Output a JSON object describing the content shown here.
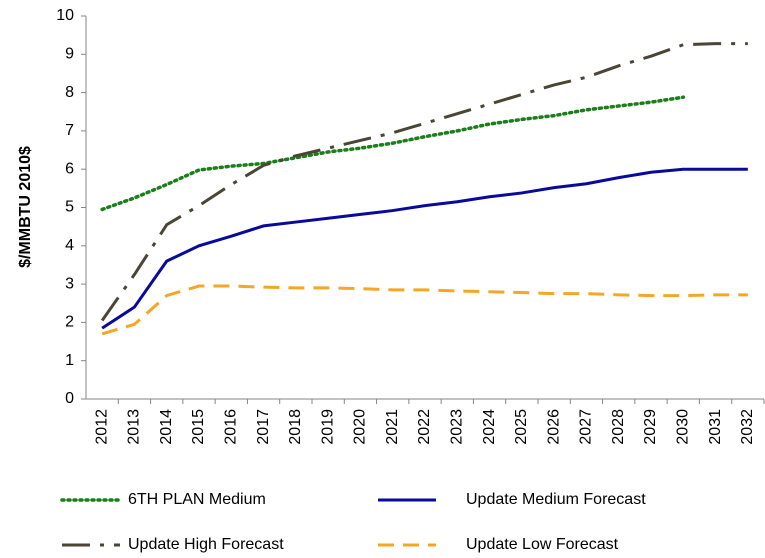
{
  "chart_data": {
    "type": "line",
    "y_label": "$/MMBTU 2010$",
    "categories": [
      "2012",
      "2013",
      "2014",
      "2015",
      "2016",
      "2017",
      "2018",
      "2019",
      "2020",
      "2021",
      "2022",
      "2023",
      "2024",
      "2025",
      "2026",
      "2027",
      "2028",
      "2029",
      "2030",
      "2031",
      "2032"
    ],
    "ylim": [
      0,
      10
    ],
    "yticks": [
      0,
      1,
      2,
      3,
      4,
      5,
      6,
      7,
      8,
      9,
      10
    ],
    "grid": false,
    "series": [
      {
        "name": "6TH PLAN Medium",
        "color": "#1a7f1a",
        "dash": "dotted",
        "values": [
          4.95,
          5.25,
          5.6,
          5.98,
          6.08,
          6.15,
          6.3,
          6.45,
          6.55,
          6.68,
          6.85,
          7.0,
          7.18,
          7.3,
          7.4,
          7.55,
          7.65,
          7.75,
          7.88,
          null,
          null
        ]
      },
      {
        "name": "Update Medium Forecast",
        "color": "#0a0a9a",
        "dash": "solid",
        "values": [
          1.85,
          2.4,
          3.6,
          4.0,
          4.25,
          4.52,
          4.62,
          4.72,
          4.82,
          4.92,
          5.05,
          5.15,
          5.28,
          5.38,
          5.52,
          5.62,
          5.78,
          5.92,
          6.0,
          6.0,
          6.0
        ]
      },
      {
        "name": "Update High Forecast",
        "color": "#4a4535",
        "dash": "dashdot",
        "values": [
          2.05,
          3.25,
          4.55,
          5.05,
          5.6,
          6.1,
          6.35,
          6.55,
          6.75,
          6.95,
          7.2,
          7.45,
          7.7,
          7.95,
          8.2,
          8.4,
          8.7,
          8.95,
          9.25,
          9.28,
          9.28
        ]
      },
      {
        "name": "Update Low Forecast",
        "color": "#f5a623",
        "dash": "dashed",
        "values": [
          1.7,
          1.95,
          2.7,
          2.95,
          2.95,
          2.92,
          2.9,
          2.9,
          2.88,
          2.85,
          2.85,
          2.82,
          2.8,
          2.78,
          2.75,
          2.75,
          2.72,
          2.7,
          2.7,
          2.72,
          2.72
        ]
      }
    ]
  }
}
